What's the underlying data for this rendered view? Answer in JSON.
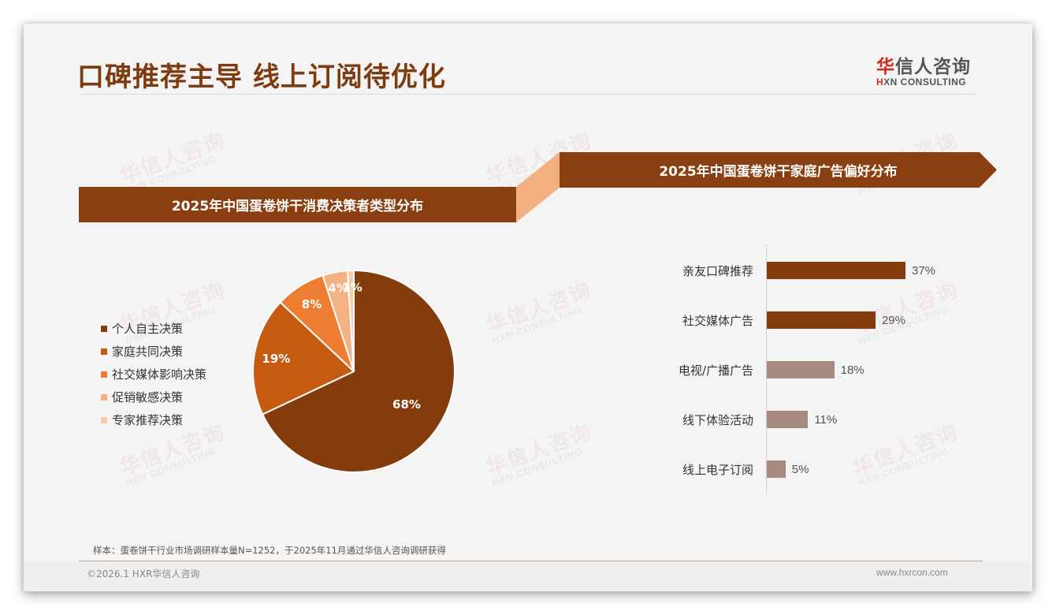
{
  "page": {
    "title": "口碑推荐主导 线上订阅待优化",
    "logo": {
      "cn_accent": "华",
      "cn_rest": "信人咨询",
      "en_accent": "H",
      "en_rest": "XN CONSULTING"
    },
    "watermark": {
      "cn": "华信人咨询",
      "en": "HXN CONSULTING"
    },
    "note": "样本：蛋卷饼干行业市场调研样本量N=1252，于2025年11月通过华信人咨询调研获得",
    "copyright": "©2026.1 HXR华信人咨询",
    "website": "www.hxrcon.com"
  },
  "colors": {
    "brand": "#8a3f10",
    "title": "#7f3b10",
    "connector": "#f2b080",
    "bar_highlight": "#843c0c",
    "bar_muted": "#a88b80"
  },
  "chart_data": [
    {
      "type": "pie",
      "title": "2025年中国蛋卷饼干消费决策者类型分布",
      "categories": [
        "个人自主决策",
        "家庭共同决策",
        "社交媒体影响决策",
        "促销敏感决策",
        "专家推荐决策"
      ],
      "values": [
        68,
        19,
        8,
        4,
        1
      ],
      "labels": [
        "68%",
        "19%",
        "8%",
        "4%",
        "1%"
      ],
      "colors": [
        "#843c0c",
        "#c55a11",
        "#ed7d31",
        "#f4b183",
        "#f8cbad"
      ],
      "legend_position": "left",
      "start_angle": "12 o'clock",
      "direction": "clockwise"
    },
    {
      "type": "bar",
      "orientation": "horizontal",
      "title": "2025年中国蛋卷饼干家庭广告偏好分布",
      "categories": [
        "亲友口碑推荐",
        "社交媒体广告",
        "电视/广播广告",
        "线下体验活动",
        "线上电子订阅"
      ],
      "values": [
        37,
        29,
        18,
        11,
        5
      ],
      "labels": [
        "37%",
        "29%",
        "18%",
        "11%",
        "5%"
      ],
      "colors": [
        "#843c0c",
        "#843c0c",
        "#a88b80",
        "#a88b80",
        "#a88b80"
      ],
      "xlabel": "",
      "ylabel": "",
      "grid": false
    }
  ]
}
